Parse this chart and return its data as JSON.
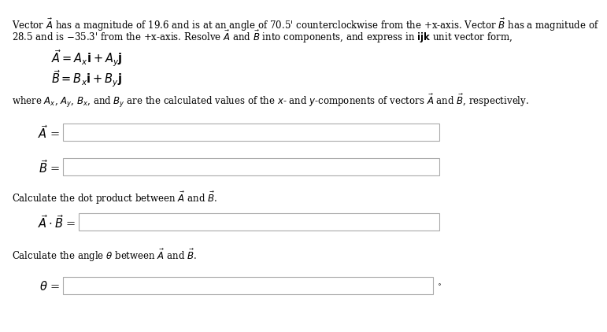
{
  "line1": "Vector $\\vec{A}$ has a magnitude of 19.6 and is at an angle of 70.5\\u2019 counterclockwise from the +x-axis. Vector $\\vec{B}$ has a magnitude of",
  "line2": "28.5 and is \\u221235.3\\u2019 from the +x-axis. Resolve $\\vec{A}$ and $\\vec{B}$ into components, and express in $\\mathbf{ijk}$ unit vector form,",
  "eq_A": "$\\vec{A} = A_x\\mathbf{i} + A_y\\mathbf{j}$",
  "eq_B": "$\\vec{B} = B_x\\mathbf{i} + B_y\\mathbf{j}$",
  "where_text": "where $A_x$, $A_y$, $B_x$, and $B_y$ are the calculated values of the $x$- and $y$-components of vectors $\\vec{A}$ and $\\vec{B}$, respectively.",
  "label_A": "$\\vec{A}$ =",
  "label_B": "$\\vec{B}$ =",
  "dot_text": "Calculate the dot product between $\\vec{A}$ and $\\vec{B}$.",
  "label_dot": "$\\vec{A} \\cdot \\vec{B}$ =",
  "angle_text": "Calculate the angle $\\theta$ between $\\vec{A}$ and $\\vec{B}$.",
  "label_theta": "$\\theta$ =",
  "bg_color": "#ffffff",
  "text_color": "#000000",
  "font_size_body": 8.5,
  "font_size_eq": 10.5
}
